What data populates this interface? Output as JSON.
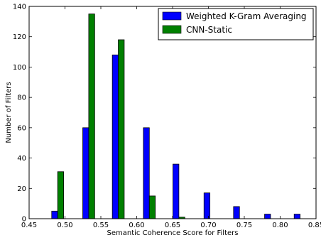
{
  "chart_data": {
    "type": "bar",
    "title": "",
    "xlabel": "Semantic Coherence Score for Filters",
    "ylabel": "Number of Filters",
    "xlim": [
      0.45,
      0.85
    ],
    "ylim": [
      0,
      140
    ],
    "xticks": [
      "0.45",
      "0.50",
      "0.55",
      "0.60",
      "0.65",
      "0.70",
      "0.75",
      "0.80",
      "0.85"
    ],
    "yticks": [
      "0",
      "20",
      "40",
      "60",
      "80",
      "100",
      "120",
      "140"
    ],
    "grid": false,
    "legend_position": "top-right",
    "series": [
      {
        "name": "Weighted K-Gram Averaging",
        "color": "#0000ff",
        "bars": [
          {
            "x0": 0.4815,
            "x1": 0.4898,
            "value": 5
          },
          {
            "x0": 0.5248,
            "x1": 0.5331,
            "value": 60
          },
          {
            "x0": 0.566,
            "x1": 0.5743,
            "value": 108
          },
          {
            "x0": 0.6093,
            "x1": 0.6176,
            "value": 60
          },
          {
            "x0": 0.6505,
            "x1": 0.6588,
            "value": 36
          },
          {
            "x0": 0.6938,
            "x1": 0.7021,
            "value": 17
          },
          {
            "x0": 0.735,
            "x1": 0.7433,
            "value": 8
          },
          {
            "x0": 0.7783,
            "x1": 0.7866,
            "value": 3
          },
          {
            "x0": 0.8195,
            "x1": 0.8278,
            "value": 3
          }
        ]
      },
      {
        "name": "CNN-Static",
        "color": "#008000",
        "bars": [
          {
            "x0": 0.4898,
            "x1": 0.4981,
            "value": 31
          },
          {
            "x0": 0.5331,
            "x1": 0.5414,
            "value": 135
          },
          {
            "x0": 0.5743,
            "x1": 0.5826,
            "value": 118
          },
          {
            "x0": 0.6176,
            "x1": 0.6259,
            "value": 15
          },
          {
            "x0": 0.6588,
            "x1": 0.6671,
            "value": 1
          }
        ]
      }
    ]
  }
}
